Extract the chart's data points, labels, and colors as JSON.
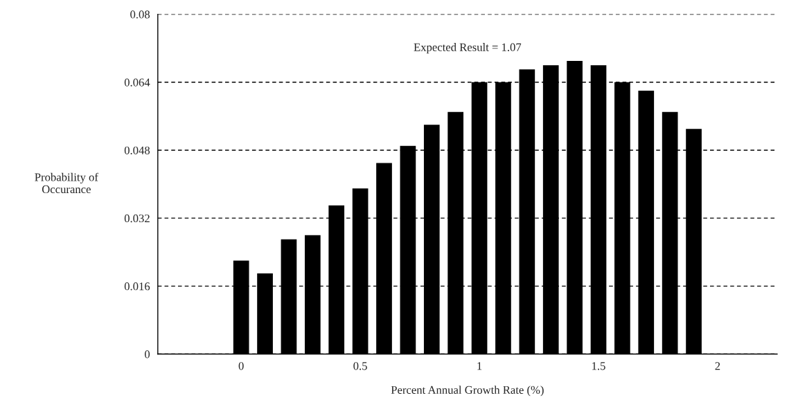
{
  "chart_data": {
    "type": "bar",
    "x": [
      0,
      0.1,
      0.2,
      0.3,
      0.4,
      0.5,
      0.6,
      0.7,
      0.8,
      0.9,
      1.0,
      1.1,
      1.2,
      1.3,
      1.4,
      1.5,
      1.6,
      1.7,
      1.8,
      1.9
    ],
    "values": [
      0.022,
      0.019,
      0.027,
      0.028,
      0.035,
      0.039,
      0.045,
      0.049,
      0.054,
      0.057,
      0.064,
      0.064,
      0.067,
      0.068,
      0.069,
      0.068,
      0.064,
      0.062,
      0.057,
      0.053
    ],
    "color": "#000000",
    "xlabel": "Percent Annual Growth Rate (%)",
    "ylabel": "Probability of\nOccurance",
    "annotations": [
      "Expected Result = 1.07"
    ],
    "xlim": [
      -0.35,
      2.25
    ],
    "xticks": [
      0,
      0.5,
      1,
      1.5,
      2
    ],
    "ylim": [
      0,
      0.08
    ],
    "yticks": [
      0,
      0.016,
      0.032,
      0.048,
      0.064,
      0.08
    ],
    "grid": "y",
    "legend": false
  }
}
